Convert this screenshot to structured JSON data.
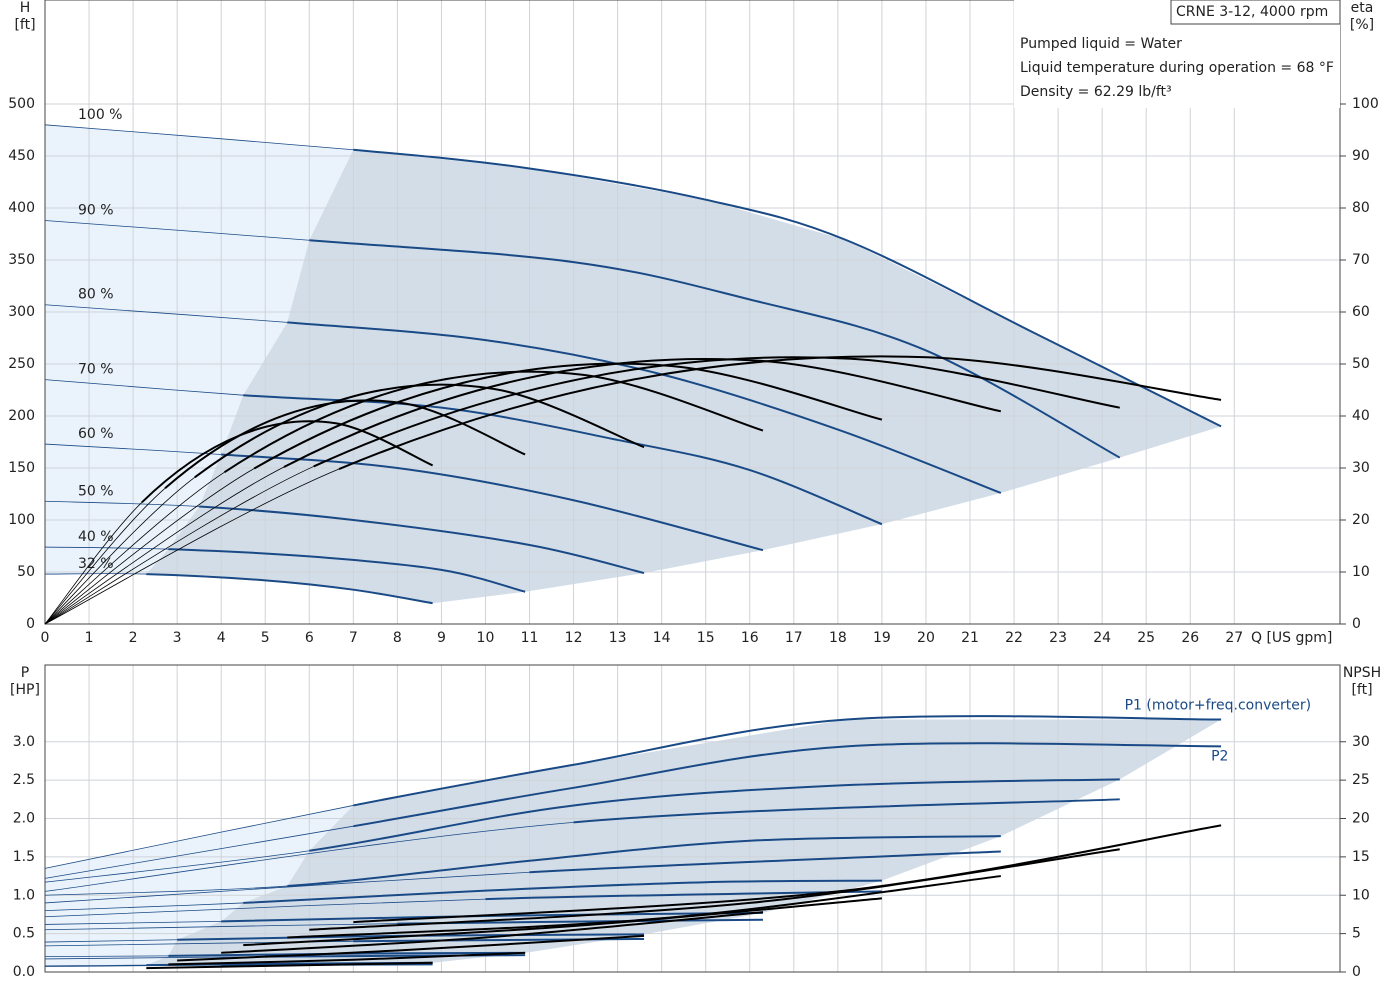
{
  "chart_data": [
    {
      "type": "line",
      "title": "CRNE 3-12, 4000 rpm",
      "annotations": [
        "Pumped liquid = Water",
        "Liquid temperature during operation = 68 °F",
        "Density = 62.29 lb/ft³"
      ],
      "xlabel": "Q [US gpm]",
      "ylabel": "H",
      "yunit": "[ft]",
      "y2label": "eta",
      "y2unit": "[%]",
      "xlim": [
        0,
        29.4
      ],
      "xticks": [
        0,
        1,
        2,
        3,
        4,
        5,
        6,
        7,
        8,
        9,
        10,
        11,
        12,
        13,
        14,
        15,
        16,
        17,
        18,
        19,
        20,
        21,
        22,
        23,
        24,
        25,
        26,
        27
      ],
      "ylim": [
        0,
        600
      ],
      "yticks": [
        0,
        50,
        100,
        150,
        200,
        250,
        300,
        350,
        400,
        450,
        500
      ],
      "y2lim": [
        0,
        120
      ],
      "y2ticks": [
        0,
        10,
        20,
        30,
        40,
        50,
        60,
        70,
        80,
        90,
        100
      ],
      "grid": true,
      "series": [
        {
          "name": "100 %",
          "color": "#1a4a86",
          "x": [
            0,
            7,
            11,
            15,
            18.2,
            22.5,
            26.7
          ],
          "values": [
            480,
            456,
            438,
            408,
            369,
            279,
            190
          ]
        },
        {
          "name": "90 %",
          "color": "#1a4a86",
          "x": [
            0,
            6,
            12,
            16,
            20,
            24.4
          ],
          "values": [
            388,
            369,
            348,
            312,
            263,
            160
          ]
        },
        {
          "name": "80 %",
          "color": "#1a4a86",
          "x": [
            0,
            5.5,
            10,
            14,
            18,
            21.7
          ],
          "values": [
            307,
            290,
            273,
            240,
            187,
            126
          ]
        },
        {
          "name": "70 %",
          "color": "#1a4a86",
          "x": [
            0,
            4.5,
            9,
            13,
            16,
            19
          ],
          "values": [
            235,
            220,
            208,
            177,
            148,
            96
          ]
        },
        {
          "name": "60 %",
          "color": "#1a4a86",
          "x": [
            0,
            4,
            8,
            12,
            16.3
          ],
          "values": [
            173,
            163,
            150,
            119,
            71
          ]
        },
        {
          "name": "50 %",
          "color": "#1a4a86",
          "x": [
            0,
            3.5,
            7,
            11,
            13.6
          ],
          "values": [
            118,
            113,
            100,
            76,
            49
          ]
        },
        {
          "name": "40 %",
          "color": "#1a4a86",
          "x": [
            0,
            2.8,
            6,
            9,
            10.9
          ],
          "values": [
            74,
            72,
            65,
            52,
            31
          ]
        },
        {
          "name": "32 %",
          "color": "#1a4a86",
          "x": [
            0,
            2.3,
            5,
            7,
            8.8
          ],
          "values": [
            48,
            48,
            42,
            33,
            20
          ]
        },
        {
          "color": "#000000",
          "axis": "y2",
          "x": [
            0,
            6.675,
            13.35,
            20.025,
            26.7
          ],
          "values": [
            0,
            29.8,
            47.0,
            51.3,
            43.1
          ]
        },
        {
          "color": "#000000",
          "axis": "y2",
          "x": [
            0,
            6.1,
            12.2,
            18.3,
            24.4
          ],
          "values": [
            0,
            30.3,
            47.2,
            51.0,
            41.6
          ]
        },
        {
          "color": "#000000",
          "axis": "y2",
          "x": [
            0,
            5.425,
            10.85,
            16.275,
            21.7
          ],
          "values": [
            0,
            30.2,
            47.1,
            50.6,
            40.9
          ]
        },
        {
          "color": "#000000",
          "axis": "y2",
          "x": [
            0,
            4.75,
            9.5,
            14.25,
            19
          ],
          "values": [
            0,
            29.9,
            46.4,
            49.6,
            39.3
          ]
        },
        {
          "color": "#000000",
          "axis": "y2",
          "x": [
            0,
            4.075,
            8.15,
            12.225,
            16.3
          ],
          "values": [
            0,
            29.2,
            45.3,
            47.9,
            37.2
          ]
        },
        {
          "color": "#000000",
          "axis": "y2",
          "x": [
            0,
            3.4,
            6.8,
            10.2,
            13.6
          ],
          "values": [
            0,
            28.2,
            43.3,
            45.2,
            34.0
          ]
        },
        {
          "color": "#000000",
          "axis": "y2",
          "x": [
            0,
            2.725,
            5.45,
            8.175,
            10.9
          ],
          "values": [
            0,
            26.1,
            40.2,
            42.4,
            32.6
          ]
        },
        {
          "color": "#000000",
          "axis": "y2",
          "x": [
            0,
            2.2,
            4.4,
            6.6,
            8.8
          ],
          "values": [
            0,
            23.4,
            36.2,
            38.6,
            30.5
          ]
        }
      ]
    },
    {
      "type": "line",
      "ylabel": "P",
      "yunit": "[HP]",
      "y2label": "NPSH",
      "y2unit": "[ft]",
      "xlim": [
        0,
        29.4
      ],
      "xticks": [
        0,
        1,
        2,
        3,
        4,
        5,
        6,
        7,
        8,
        9,
        10,
        11,
        12,
        13,
        14,
        15,
        16,
        17,
        18,
        19,
        20,
        21,
        22,
        23,
        24,
        25,
        26,
        27
      ],
      "ylim": [
        0,
        4
      ],
      "yticks": [
        {
          "value": 0,
          "label": "0.0"
        },
        0.5,
        {
          "value": 1,
          "label": "1.0"
        },
        1.5,
        {
          "value": 2,
          "label": "2.0"
        },
        2.5,
        {
          "value": 3,
          "label": "3.0"
        }
      ],
      "y2lim": [
        0,
        40
      ],
      "y2ticks": [
        0,
        5,
        10,
        15,
        20,
        25,
        30
      ],
      "grid": true,
      "series": [
        {
          "name": "P1 (motor+freq.converter)",
          "color": "#1a4a86",
          "x": [
            0,
            7,
            12,
            18.2,
            26.7
          ],
          "values": [
            1.35,
            2.17,
            2.7,
            3.29,
            3.29
          ]
        },
        {
          "color": "#1a4a86",
          "x": [
            0,
            6,
            12,
            18,
            24.4
          ],
          "values": [
            1.17,
            1.58,
            2.17,
            2.43,
            2.51
          ]
        },
        {
          "color": "#1a4a86",
          "x": [
            0,
            5.5,
            11,
            16,
            21.7
          ],
          "values": [
            1.0,
            1.12,
            1.45,
            1.71,
            1.77
          ]
        },
        {
          "color": "#1a4a86",
          "x": [
            0,
            4.5,
            10,
            15,
            19
          ],
          "values": [
            0.8,
            0.9,
            1.06,
            1.17,
            1.19
          ]
        },
        {
          "color": "#1a4a86",
          "x": [
            0,
            4,
            10,
            16.3
          ],
          "values": [
            0.62,
            0.66,
            0.73,
            0.77
          ]
        },
        {
          "color": "#1a4a86",
          "x": [
            0,
            3,
            8,
            13.6
          ],
          "values": [
            0.39,
            0.42,
            0.47,
            0.49
          ]
        },
        {
          "color": "#1a4a86",
          "x": [
            0,
            2.8,
            7,
            10.9
          ],
          "values": [
            0.2,
            0.21,
            0.24,
            0.25
          ]
        },
        {
          "color": "#1a4a86",
          "x": [
            0,
            2.3,
            6,
            8.8
          ],
          "values": [
            0.08,
            0.09,
            0.11,
            0.12
          ]
        },
        {
          "name": "P2",
          "color": "#1a4a86",
          "x": [
            0,
            7,
            12,
            18.2,
            26.7
          ],
          "values": [
            1.22,
            1.9,
            2.4,
            2.94,
            2.94
          ]
        },
        {
          "color": "#1a4a86",
          "x": [
            0,
            12,
            24.4
          ],
          "values": [
            1.05,
            1.95,
            2.25
          ]
        },
        {
          "color": "#1a4a86",
          "x": [
            0,
            11,
            21.7
          ],
          "values": [
            0.9,
            1.3,
            1.57
          ]
        },
        {
          "color": "#1a4a86",
          "x": [
            0,
            10,
            19
          ],
          "values": [
            0.72,
            0.95,
            1.05
          ]
        },
        {
          "color": "#1a4a86",
          "x": [
            0,
            8,
            16.3
          ],
          "values": [
            0.55,
            0.63,
            0.68
          ]
        },
        {
          "color": "#1a4a86",
          "x": [
            0,
            7,
            13.6
          ],
          "values": [
            0.34,
            0.4,
            0.43
          ]
        },
        {
          "color": "#1a4a86",
          "x": [
            0,
            5,
            10.9
          ],
          "values": [
            0.17,
            0.2,
            0.22
          ]
        },
        {
          "color": "#1a4a86",
          "x": [
            0,
            4,
            8.8
          ],
          "values": [
            0.07,
            0.09,
            0.1
          ]
        },
        {
          "color": "#000000",
          "axis": "y2",
          "x": [
            7,
            18,
            26.7
          ],
          "values": [
            6.5,
            10.5,
            19.1
          ]
        },
        {
          "color": "#000000",
          "axis": "y2",
          "x": [
            6,
            16,
            24.4
          ],
          "values": [
            5.5,
            9,
            16
          ]
        },
        {
          "color": "#000000",
          "axis": "y2",
          "x": [
            5.5,
            14,
            21.7
          ],
          "values": [
            4.5,
            7,
            12.5
          ]
        },
        {
          "color": "#000000",
          "axis": "y2",
          "x": [
            4.5,
            12,
            19
          ],
          "values": [
            3.5,
            6,
            9.6
          ]
        },
        {
          "color": "#000000",
          "axis": "y2",
          "x": [
            4,
            10,
            16.3
          ],
          "values": [
            2.5,
            4.5,
            7.8
          ]
        },
        {
          "color": "#000000",
          "axis": "y2",
          "x": [
            3,
            8,
            13.6
          ],
          "values": [
            1.5,
            2.8,
            4.7
          ]
        },
        {
          "color": "#000000",
          "axis": "y2",
          "x": [
            2.8,
            7,
            10.9
          ],
          "values": [
            1,
            1.6,
            2.5
          ]
        },
        {
          "color": "#000000",
          "axis": "y2",
          "x": [
            2.3,
            6,
            8.8
          ],
          "values": [
            0.5,
            0.9,
            1.2
          ]
        }
      ]
    }
  ]
}
